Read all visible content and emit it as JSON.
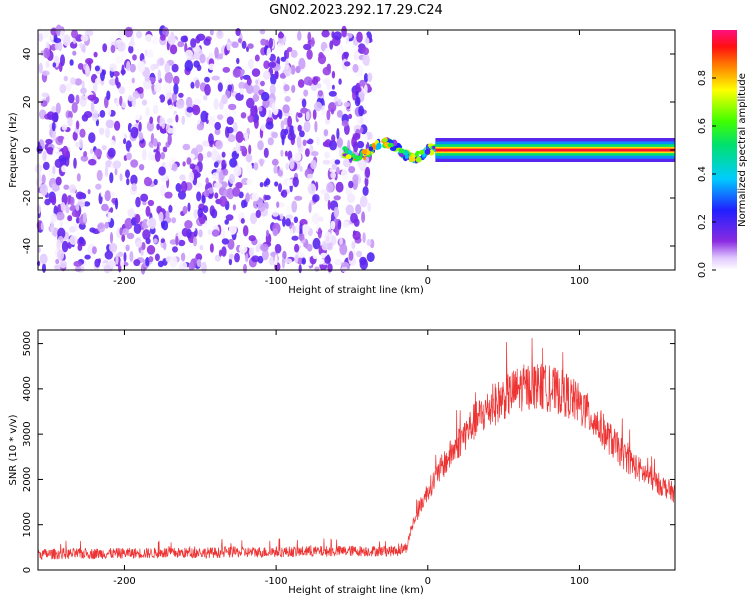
{
  "title": "GN02.2023.292.17.29.C24",
  "chart_data": [
    {
      "type": "heatmap",
      "xlabel": "Height of straight line (km)",
      "ylabel": "Frequency (Hz)",
      "xlim": [
        -257,
        163
      ],
      "ylim": [
        -50,
        50
      ],
      "xticks": [
        -200,
        -100,
        0,
        100
      ],
      "yticks": [
        -40,
        -20,
        0,
        20,
        40
      ],
      "colorbar": {
        "label": "Normalized spectral amplitude",
        "range": [
          0,
          1
        ],
        "ticks": [
          "0.0",
          "0.2",
          "0.4",
          "0.6",
          "0.8"
        ],
        "tick_values": [
          0,
          0.2,
          0.4,
          0.6,
          0.8
        ]
      },
      "regions": [
        {
          "name": "noise",
          "x_range": [
            -257,
            -38
          ],
          "freq_range": [
            -50,
            50
          ],
          "amplitude_range": [
            0.0,
            0.2
          ]
        },
        {
          "name": "transition",
          "x_range": [
            -55,
            5
          ],
          "freq_range": [
            -5,
            5
          ],
          "amplitude_range": [
            0.1,
            0.9
          ]
        },
        {
          "name": "tone",
          "x_range": [
            5,
            163
          ],
          "freq": 0,
          "amplitude": 0.95
        }
      ]
    },
    {
      "type": "line",
      "xlabel": "Height of straight line (km)",
      "ylabel": "SNR (10 * v/v)",
      "xlim": [
        -257,
        163
      ],
      "ylim": [
        0,
        5300
      ],
      "xticks": [
        -200,
        -100,
        0,
        100
      ],
      "yticks": [
        0,
        1000,
        2000,
        3000,
        4000,
        5000
      ],
      "series": [
        {
          "color": "#ee3333",
          "x": [
            -257,
            -200,
            -150,
            -100,
            -50,
            -20,
            -14,
            -10,
            -5,
            0,
            10,
            20,
            30,
            40,
            50,
            60,
            70,
            80,
            90,
            100,
            110,
            120,
            130,
            140,
            150,
            163
          ],
          "y": [
            350,
            370,
            380,
            400,
            420,
            420,
            500,
            1000,
            1400,
            1750,
            2300,
            2800,
            3250,
            3550,
            3800,
            4000,
            4080,
            4000,
            3900,
            3650,
            3300,
            2900,
            2500,
            2200,
            1950,
            1700
          ]
        }
      ]
    }
  ]
}
